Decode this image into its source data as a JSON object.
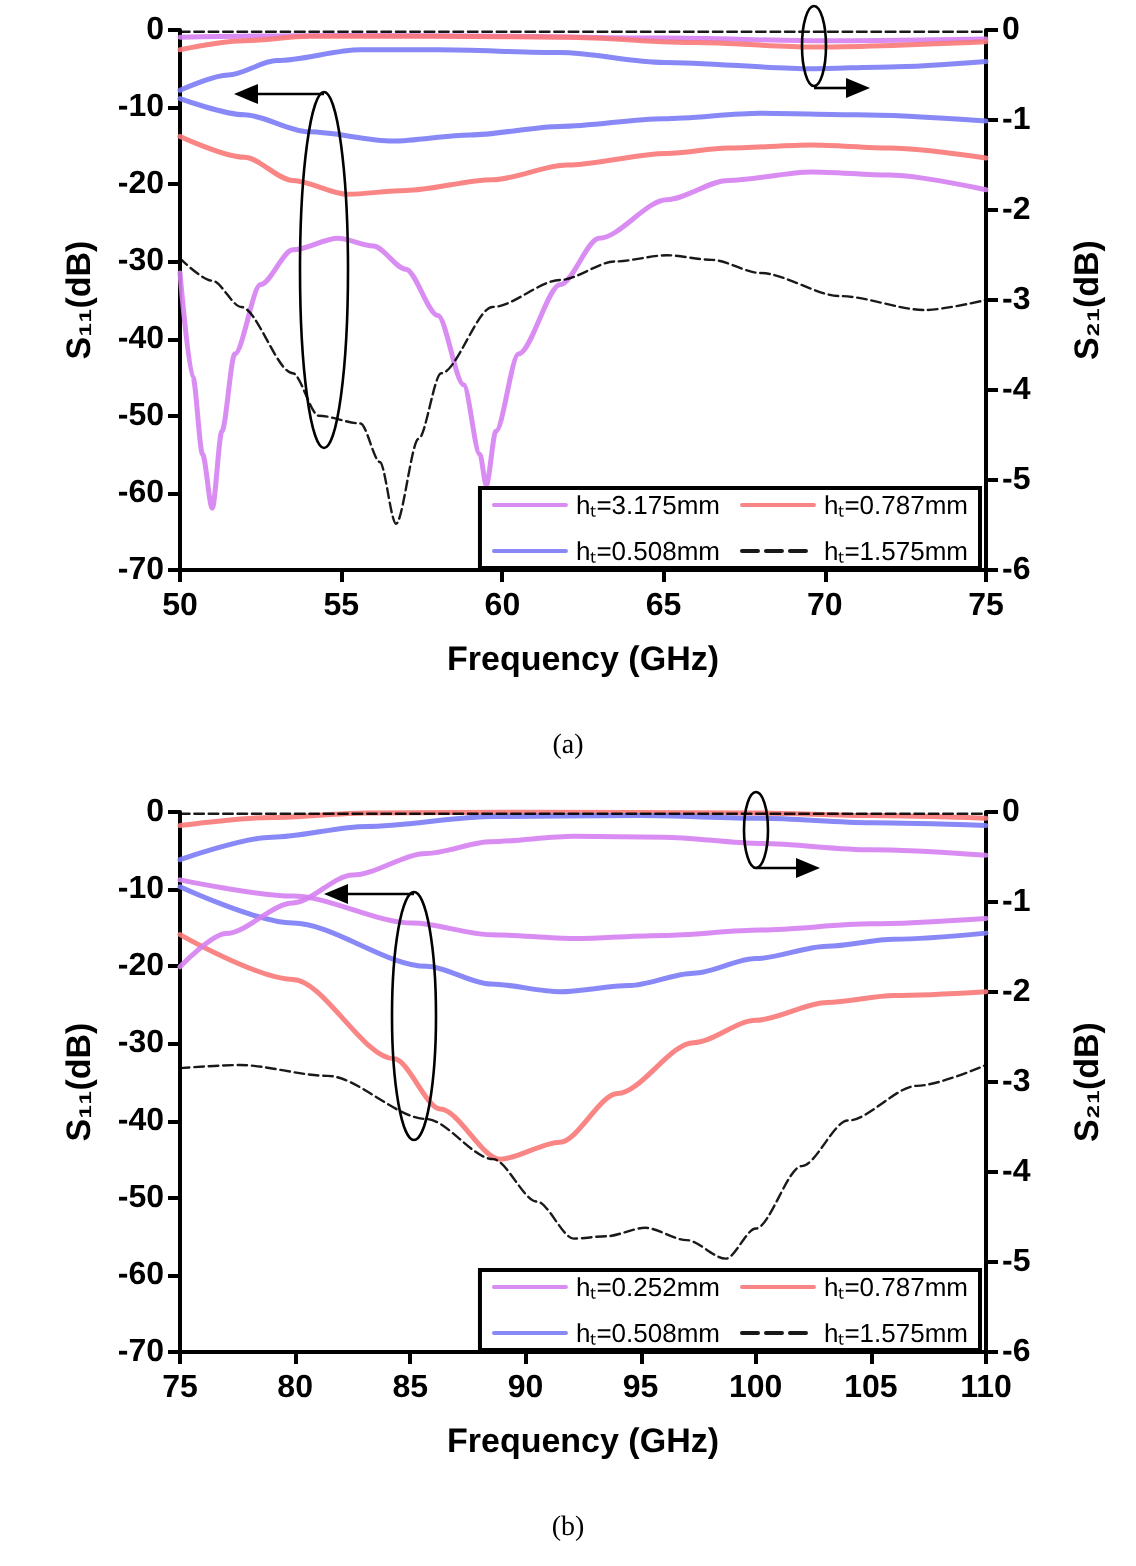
{
  "chart_data": [
    {
      "type": "line",
      "xlabel": "Frequency (GHz)",
      "ylabel": "S₁₁(dB)",
      "y2label": "S₂₁(dB)",
      "annotations": [
        "(a)"
      ],
      "xlim": [
        50,
        75
      ],
      "xticks": [
        50,
        55,
        60,
        65,
        70,
        75
      ],
      "ylim": [
        -70,
        0
      ],
      "yticks": [
        -70,
        -60,
        -50,
        -40,
        -30,
        -20,
        -10,
        0
      ],
      "y2lim": [
        -6,
        0
      ],
      "y2ticks": [
        -6,
        -5,
        -4,
        -3,
        -2,
        -1,
        0
      ],
      "legend": "bottom right",
      "grid": false,
      "series": [
        {
          "name": "hₜ=3.175mm",
          "color": "#d580f0",
          "x": [
            50,
            50.4,
            50.7,
            51.0,
            51.3,
            51.7,
            52.5,
            53.5,
            54.9,
            56,
            57,
            58,
            58.8,
            59.3,
            59.5,
            59.8,
            60.5,
            61.8,
            63,
            65.1,
            67,
            69.6,
            72,
            75
          ],
          "values": [
            -31.5,
            -45,
            -55,
            -62,
            -52,
            -42,
            -33,
            -28.5,
            -27,
            -28,
            -31,
            -37,
            -46,
            -55,
            -59,
            -52,
            -42,
            -33,
            -27,
            -22,
            -19.5,
            -18.4,
            -18.8,
            -20.7
          ]
        },
        {
          "name": "hₜ=0.787mm",
          "color": "#f87878",
          "x": [
            50,
            52,
            53.5,
            55.2,
            57,
            59.7,
            62,
            65.1,
            67,
            69.6,
            72,
            75
          ],
          "values": [
            -13.8,
            -16.5,
            -19.5,
            -21.3,
            -20.8,
            -19.4,
            -17.5,
            -16,
            -15.3,
            -14.9,
            -15.3,
            -16.6
          ]
        },
        {
          "name": "hₜ=0.508mm",
          "color": "#7b7bf5",
          "x": [
            50,
            52,
            54,
            56.6,
            59,
            61.8,
            65,
            68,
            71,
            75
          ],
          "values": [
            -8.9,
            -11,
            -13.2,
            -14.4,
            -13.6,
            -12.5,
            -11.5,
            -10.8,
            -11,
            -11.8
          ]
        },
        {
          "name": "hₜ=1.575mm",
          "color": "#000000",
          "line_style": "dashed",
          "x": [
            50,
            51,
            51.9,
            53.5,
            54.3,
            55.6,
            56.2,
            56.7,
            57.4,
            58.1,
            59.7,
            61.8,
            63.5,
            65.1,
            66.5,
            68,
            70.5,
            73.1,
            75
          ],
          "values": [
            -29.6,
            -32.5,
            -35.9,
            -44.5,
            -50,
            -51,
            -56,
            -64,
            -53,
            -44.5,
            -35.9,
            -32.4,
            -30,
            -29.2,
            -29.8,
            -31.5,
            -34.5,
            -36.3,
            -35
          ]
        },
        {
          "color": "#d580f0",
          "axis": "y2",
          "x": [
            50,
            55,
            60,
            65,
            70,
            75
          ],
          "values": [
            -0.08,
            -0.06,
            -0.07,
            -0.09,
            -0.12,
            -0.1
          ]
        },
        {
          "color": "#f87878",
          "axis": "y2",
          "x": [
            50,
            52,
            54,
            58,
            62,
            66,
            69.6,
            75
          ],
          "values": [
            -0.22,
            -0.12,
            -0.07,
            -0.07,
            -0.08,
            -0.14,
            -0.19,
            -0.13
          ]
        },
        {
          "color": "#7b7bf5",
          "axis": "y2",
          "x": [
            50,
            51.5,
            53,
            55.6,
            58,
            61.8,
            65,
            69.6,
            72,
            75
          ],
          "values": [
            -0.67,
            -0.5,
            -0.34,
            -0.22,
            -0.22,
            -0.25,
            -0.36,
            -0.43,
            -0.41,
            -0.35
          ]
        },
        {
          "color": "#000000",
          "axis": "y2",
          "line_style": "dashed",
          "x": [
            50,
            75
          ],
          "values": [
            -0.02,
            -0.02
          ]
        }
      ]
    },
    {
      "type": "line",
      "xlabel": "Frequency (GHz)",
      "ylabel": "S₁₁(dB)",
      "y2label": "S₂₁(dB)",
      "annotations": [
        "(b)"
      ],
      "xlim": [
        75,
        110
      ],
      "xticks": [
        75,
        80,
        85,
        90,
        95,
        100,
        105,
        110
      ],
      "ylim": [
        -70,
        0
      ],
      "yticks": [
        -70,
        -60,
        -50,
        -40,
        -30,
        -20,
        -10,
        0
      ],
      "y2lim": [
        -6,
        0
      ],
      "y2ticks": [
        -6,
        -5,
        -4,
        -3,
        -2,
        -1,
        0
      ],
      "legend": "bottom right",
      "grid": false,
      "series": [
        {
          "name": "hₜ=0.252mm",
          "color": "#d580f0",
          "x": [
            75,
            79.9,
            85.1,
            88.5,
            92.1,
            96,
            100.2,
            105,
            110
          ],
          "values": [
            -8.8,
            -10.9,
            -14.4,
            -15.9,
            -16.4,
            -16,
            -15.3,
            -14.5,
            -13.8
          ]
        },
        {
          "name": "hₜ=0.787mm",
          "color": "#f87878",
          "x": [
            75,
            79.9,
            84.3,
            86.3,
            88.9,
            91.5,
            94,
            97.3,
            100,
            103.1,
            106,
            110
          ],
          "values": [
            -15.9,
            -21.7,
            -32,
            -38.5,
            -45,
            -42.8,
            -36.5,
            -29.9,
            -27,
            -24.7,
            -23.8,
            -23.3
          ]
        },
        {
          "name": "hₜ=0.508mm",
          "color": "#7b7bf5",
          "x": [
            75,
            79.9,
            85.7,
            88.5,
            91.5,
            94.5,
            97.3,
            100,
            103.1,
            106,
            110
          ],
          "values": [
            -9.7,
            -14.4,
            -20,
            -22.3,
            -23.3,
            -22.5,
            -20.9,
            -19,
            -17.4,
            -16.5,
            -15.7
          ]
        },
        {
          "name": "hₜ=1.575mm",
          "color": "#000000",
          "line_style": "dashed",
          "x": [
            75,
            77.6,
            81.4,
            85.7,
            88.6,
            90.5,
            92.1,
            93.5,
            95.2,
            97,
            98.7,
            100,
            102,
            104,
            107,
            110
          ],
          "values": [
            -33.2,
            -32.8,
            -34.2,
            -39.8,
            -45,
            -50.5,
            -55.3,
            -55,
            -53.9,
            -55.5,
            -57.9,
            -54,
            -45.9,
            -40,
            -35.5,
            -32.8
          ]
        },
        {
          "color": "#d580f0",
          "axis": "y2",
          "x": [
            75,
            77,
            79.9,
            82.5,
            85.7,
            88.5,
            92.1,
            96,
            100.2,
            105,
            110
          ],
          "values": [
            -1.72,
            -1.35,
            -1.01,
            -0.7,
            -0.46,
            -0.33,
            -0.27,
            -0.28,
            -0.35,
            -0.42,
            -0.48
          ]
        },
        {
          "color": "#f87878",
          "axis": "y2",
          "x": [
            75,
            79,
            83.1,
            90,
            100,
            105,
            110
          ],
          "values": [
            -0.15,
            -0.06,
            -0.01,
            0,
            -0.01,
            -0.04,
            -0.07
          ]
        },
        {
          "color": "#7b7bf5",
          "axis": "y2",
          "x": [
            75,
            79,
            83.1,
            88.6,
            95,
            100.2,
            105,
            110
          ],
          "values": [
            -0.53,
            -0.28,
            -0.16,
            -0.05,
            -0.04,
            -0.07,
            -0.12,
            -0.15
          ]
        },
        {
          "color": "#000000",
          "axis": "y2",
          "line_style": "dashed",
          "x": [
            75,
            110
          ],
          "values": [
            -0.02,
            -0.02
          ]
        }
      ]
    }
  ]
}
